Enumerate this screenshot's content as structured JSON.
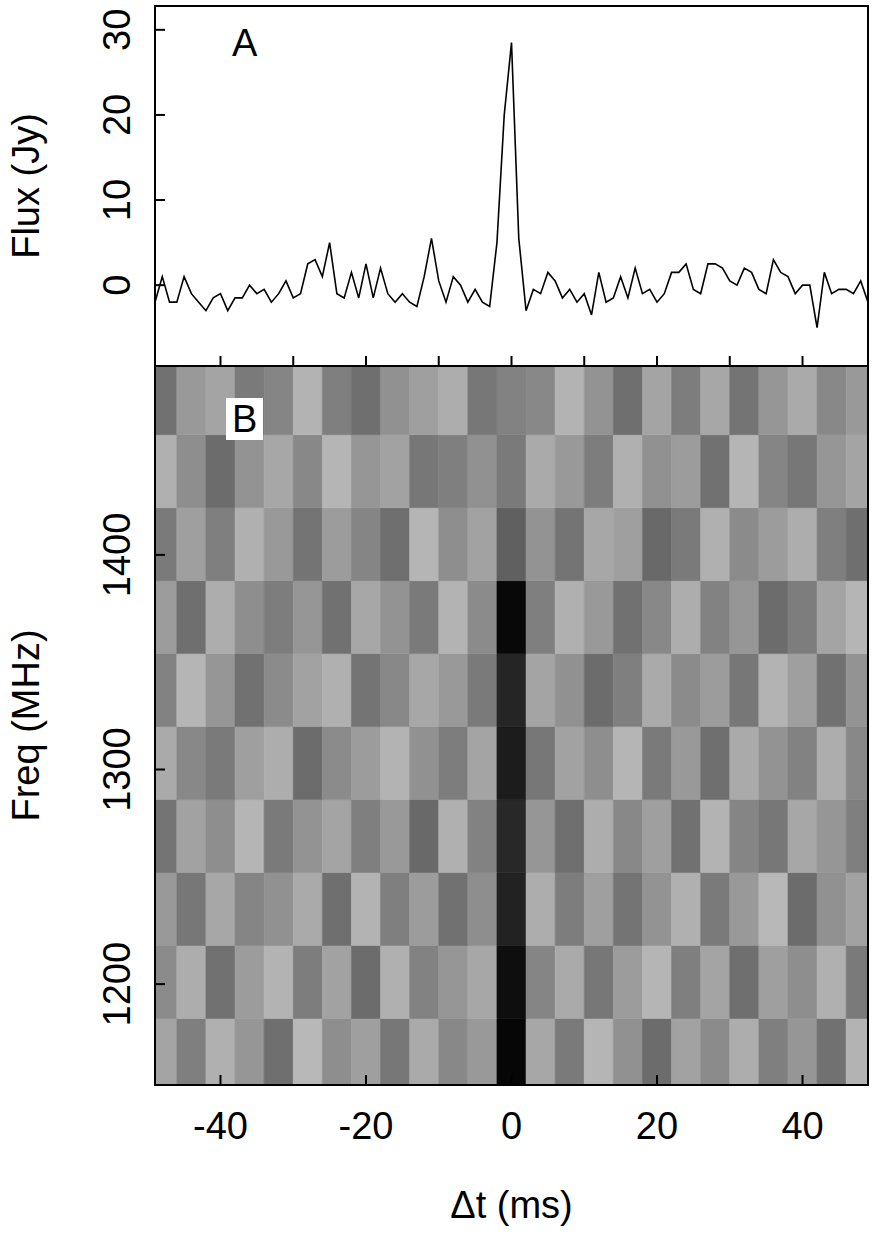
{
  "chart_data": [
    {
      "type": "line",
      "panel": "A",
      "ylabel": "Flux (Jy)",
      "color": "#000000",
      "x": [
        -49,
        -48,
        -47,
        -46,
        -45,
        -44,
        -43,
        -42,
        -41,
        -40,
        -39,
        -38,
        -37,
        -36,
        -35,
        -34,
        -33,
        -32,
        -31,
        -30,
        -29,
        -28,
        -27,
        -26,
        -25,
        -24,
        -23,
        -22,
        -21,
        -20,
        -19,
        -18,
        -17,
        -16,
        -15,
        -14,
        -13,
        -12,
        -11,
        -10,
        -9,
        -8,
        -7,
        -6,
        -5,
        -4,
        -3,
        -2,
        -1,
        0,
        1,
        2,
        3,
        4,
        5,
        6,
        7,
        8,
        9,
        10,
        11,
        12,
        13,
        14,
        15,
        16,
        17,
        18,
        19,
        20,
        21,
        22,
        23,
        24,
        25,
        26,
        27,
        28,
        29,
        30,
        31,
        32,
        33,
        34,
        35,
        36,
        37,
        38,
        39,
        40,
        41,
        42,
        43,
        44,
        45,
        46,
        47,
        48,
        49
      ],
      "values": [
        -2,
        1,
        -2,
        -2,
        1,
        -1,
        -2,
        -3,
        -1.5,
        -1,
        -3,
        -1.5,
        -1.5,
        0,
        -1,
        -0.5,
        -2,
        -1,
        0.5,
        -1.5,
        -1,
        2.5,
        3,
        1,
        5,
        -1,
        -1.5,
        1.5,
        -1.5,
        2.5,
        -1.5,
        2,
        -1,
        -2,
        -1,
        -2,
        -2.5,
        1,
        5.5,
        0.5,
        -2,
        1,
        0,
        -2,
        -0.5,
        -2,
        -2.5,
        5,
        20,
        28.5,
        5.5,
        -3,
        -0.5,
        -1,
        1.5,
        0.5,
        -1.5,
        -0.5,
        -2,
        -1,
        -3.5,
        1.5,
        -2,
        -1.5,
        1,
        -1.5,
        2,
        -1,
        -0.5,
        -2,
        -1,
        1.5,
        1.5,
        2.5,
        -0.5,
        -1,
        2.5,
        2.5,
        2,
        0.5,
        0,
        2,
        1.5,
        -0.5,
        -1,
        3,
        1.5,
        1,
        -1,
        0,
        0,
        -5,
        1.5,
        -1,
        -0.5,
        -0.5,
        -1,
        0.5,
        -2
      ],
      "xlim": [
        -49,
        49
      ],
      "xticks": [
        -40,
        -30,
        -20,
        -10,
        0,
        10,
        20,
        30,
        40
      ],
      "ylim": [
        -9.5,
        32.8
      ],
      "yticks": [
        0,
        10,
        20,
        30
      ],
      "tick_labels": "y"
    },
    {
      "type": "heatmap",
      "panel": "B",
      "xlabel": "Δt (ms)",
      "ylabel": "Freq (MHz)",
      "x": [
        -48,
        -44,
        -40,
        -36,
        -32,
        -28,
        -24,
        -20,
        -16,
        -12,
        -8,
        -4,
        0,
        4,
        8,
        12,
        16,
        20,
        24,
        28,
        32,
        36,
        40,
        44,
        48
      ],
      "y": [
        1167,
        1201,
        1235,
        1269,
        1303,
        1337,
        1371,
        1405,
        1439,
        1473
      ],
      "cells": [
        [
          0.42,
          0.55,
          0.38,
          0.47,
          0.61,
          0.35,
          0.5,
          0.44,
          0.58,
          0.4,
          0.52,
          0.46,
          0.98,
          0.41,
          0.57,
          0.36,
          0.49,
          0.62,
          0.43,
          0.51,
          0.39,
          0.55,
          0.47,
          0.6,
          0.37
        ],
        [
          0.51,
          0.39,
          0.6,
          0.45,
          0.37,
          0.56,
          0.43,
          0.62,
          0.38,
          0.54,
          0.47,
          0.41,
          0.95,
          0.53,
          0.4,
          0.58,
          0.45,
          0.36,
          0.55,
          0.42,
          0.61,
          0.44,
          0.5,
          0.38,
          0.57
        ],
        [
          0.46,
          0.58,
          0.41,
          0.53,
          0.49,
          0.4,
          0.61,
          0.37,
          0.55,
          0.45,
          0.6,
          0.5,
          0.88,
          0.39,
          0.56,
          0.44,
          0.59,
          0.48,
          0.38,
          0.57,
          0.46,
          0.35,
          0.62,
          0.49,
          0.43
        ],
        [
          0.59,
          0.43,
          0.5,
          0.36,
          0.57,
          0.48,
          0.42,
          0.55,
          0.46,
          0.63,
          0.38,
          0.54,
          0.86,
          0.47,
          0.61,
          0.39,
          0.52,
          0.44,
          0.6,
          0.37,
          0.53,
          0.58,
          0.41,
          0.47,
          0.55
        ],
        [
          0.4,
          0.52,
          0.57,
          0.44,
          0.39,
          0.62,
          0.51,
          0.45,
          0.37,
          0.49,
          0.56,
          0.42,
          0.9,
          0.58,
          0.43,
          0.5,
          0.36,
          0.57,
          0.46,
          0.61,
          0.4,
          0.48,
          0.54,
          0.39,
          0.52
        ],
        [
          0.54,
          0.36,
          0.47,
          0.6,
          0.51,
          0.43,
          0.38,
          0.59,
          0.52,
          0.41,
          0.46,
          0.57,
          0.87,
          0.42,
          0.49,
          0.62,
          0.55,
          0.4,
          0.51,
          0.45,
          0.58,
          0.37,
          0.44,
          0.6,
          0.48
        ],
        [
          0.45,
          0.61,
          0.39,
          0.5,
          0.56,
          0.47,
          0.6,
          0.41,
          0.48,
          0.57,
          0.37,
          0.51,
          0.97,
          0.55,
          0.38,
          0.46,
          0.6,
          0.52,
          0.39,
          0.54,
          0.47,
          0.62,
          0.56,
          0.42,
          0.36
        ],
        [
          0.57,
          0.44,
          0.55,
          0.38,
          0.46,
          0.59,
          0.45,
          0.53,
          0.61,
          0.36,
          0.5,
          0.43,
          0.66,
          0.48,
          0.59,
          0.41,
          0.44,
          0.63,
          0.57,
          0.38,
          0.51,
          0.45,
          0.39,
          0.55,
          0.61
        ],
        [
          0.38,
          0.5,
          0.62,
          0.48,
          0.41,
          0.52,
          0.36,
          0.47,
          0.43,
          0.58,
          0.55,
          0.49,
          0.57,
          0.4,
          0.46,
          0.56,
          0.38,
          0.49,
          0.45,
          0.6,
          0.36,
          0.53,
          0.58,
          0.47,
          0.42
        ],
        [
          0.6,
          0.46,
          0.42,
          0.57,
          0.53,
          0.37,
          0.55,
          0.61,
          0.49,
          0.44,
          0.39,
          0.58,
          0.54,
          0.52,
          0.37,
          0.48,
          0.61,
          0.42,
          0.56,
          0.41,
          0.59,
          0.47,
          0.4,
          0.52,
          0.46
        ]
      ],
      "zlim": [
        0.1,
        1.0
      ],
      "xlim": [
        -49,
        49
      ],
      "xticks": [
        -40,
        -20,
        0,
        20,
        40
      ],
      "ylim": [
        1153,
        1488
      ],
      "yticks": [
        1200,
        1300,
        1400
      ]
    }
  ]
}
